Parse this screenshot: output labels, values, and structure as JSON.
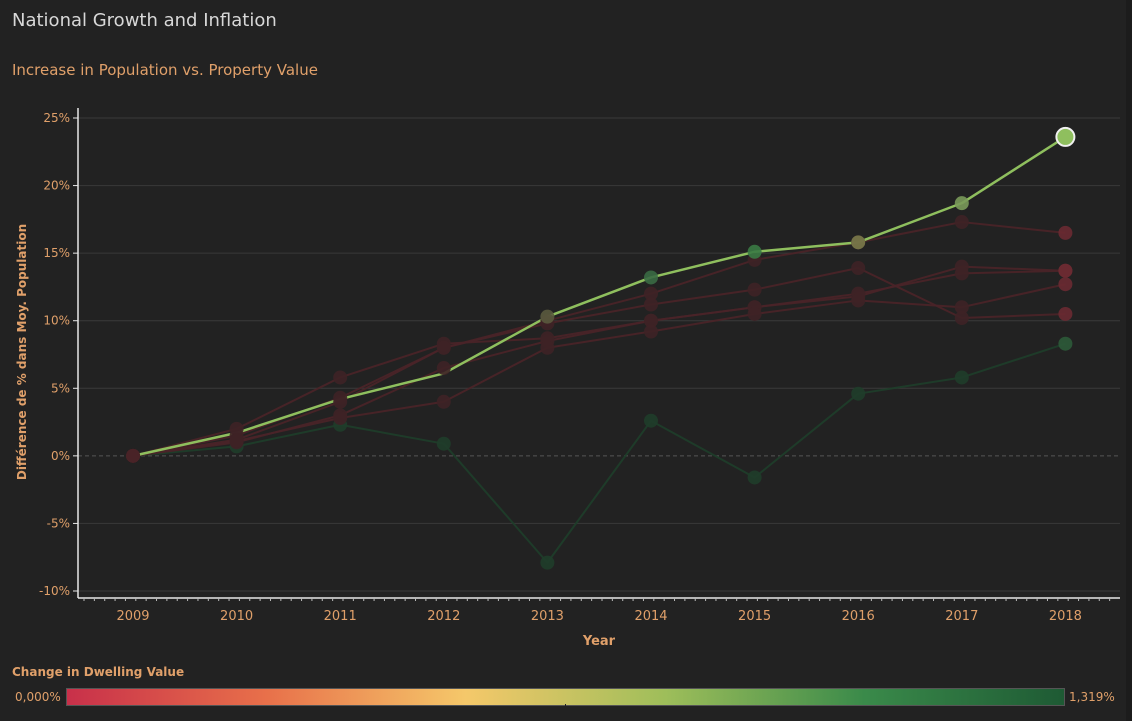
{
  "page": {
    "title": "National Growth and Inflation",
    "subtitle": "Increase in Population vs. Property Value"
  },
  "legend": {
    "title": "Change in Dwelling Value",
    "min_label": "0,000%",
    "max_label": "1,319%",
    "colors": [
      "#c8304a",
      "#e8704a",
      "#f5c86a",
      "#9ebe5a",
      "#3a8a4a",
      "#1e5a34"
    ]
  },
  "colors": {
    "background": "#222222",
    "text_accent": "#e0a06a",
    "title_text": "#d8d8d8",
    "gridline": "#3a3a3a",
    "axis": "#e8e8e8"
  },
  "chart_data": {
    "type": "line",
    "xlabel": "Year",
    "ylabel": "Différence de % dans Moy. Population",
    "x": [
      2009,
      2010,
      2011,
      2012,
      2013,
      2014,
      2015,
      2016,
      2017,
      2018
    ],
    "ylim": [
      -10,
      25
    ],
    "yticks": [
      25,
      20,
      15,
      10,
      5,
      0,
      -5,
      -10
    ],
    "ytick_labels": [
      "25%",
      "20%",
      "15%",
      "10%",
      "5%",
      "0%",
      "-5%",
      "-10%"
    ],
    "grid": true,
    "series": [
      {
        "values": [
          0,
          1.7,
          4.2,
          6.1,
          10.3,
          13.2,
          15.1,
          15.8,
          18.7,
          23.6
        ],
        "color": "#8fbf5e",
        "highlight": true
      },
      {
        "values": [
          0,
          0.7,
          2.3,
          0.9,
          -7.9,
          2.6,
          -1.6,
          4.6,
          5.8,
          8.3
        ],
        "color": "#1f3d2a"
      },
      {
        "values": [
          0,
          1.5,
          4.3,
          8.0,
          10.0,
          12.0,
          14.5,
          15.8,
          17.3,
          16.5
        ],
        "color": "#4a2428"
      },
      {
        "values": [
          0,
          2.0,
          5.8,
          8.3,
          8.7,
          10.0,
          11.0,
          11.8,
          14.0,
          13.7
        ],
        "color": "#4a2428"
      },
      {
        "values": [
          0,
          1.2,
          4.0,
          8.0,
          9.8,
          11.2,
          12.3,
          13.9,
          10.2,
          10.5
        ],
        "color": "#4a2428"
      },
      {
        "values": [
          0,
          1.0,
          3.0,
          6.5,
          8.5,
          10.0,
          11.0,
          12.0,
          13.5,
          13.7
        ],
        "color": "#4a2428"
      },
      {
        "values": [
          0,
          1.1,
          2.8,
          4.0,
          8.0,
          9.2,
          10.5,
          11.5,
          11.0,
          12.7
        ],
        "color": "#4a2428"
      }
    ]
  }
}
